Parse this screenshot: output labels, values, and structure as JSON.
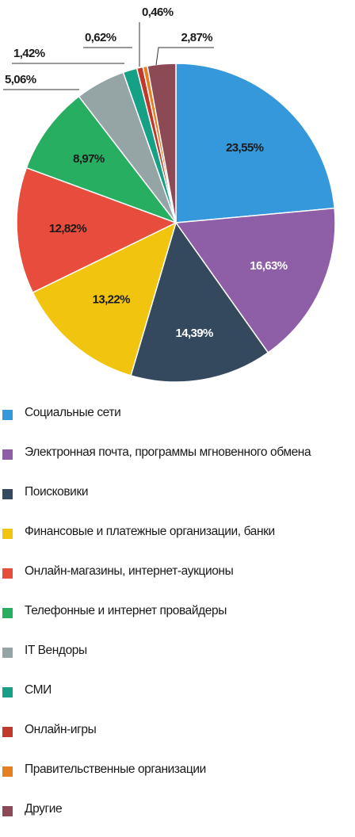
{
  "chart_data": {
    "type": "pie",
    "title": "",
    "legend_position": "bottom",
    "series": [
      {
        "name": "Социальные сети",
        "value": 23.55,
        "label": "23,55%",
        "color": "#3498db"
      },
      {
        "name": "Электронная почта, программы мгновенного обмена",
        "value": 16.63,
        "label": "16,63%",
        "color": "#8e5ea6"
      },
      {
        "name": "Поисковики",
        "value": 14.39,
        "label": "14,39%",
        "color": "#34495e"
      },
      {
        "name": "Финансовые и платежные организации, банки",
        "value": 13.22,
        "label": "13,22%",
        "color": "#f1c40f"
      },
      {
        "name": "Онлайн-магазины, интернет-аукционы",
        "value": 12.82,
        "label": "12,82%",
        "color": "#e74c3c"
      },
      {
        "name": "Телефонные и интернет провайдеры",
        "value": 8.97,
        "label": "8,97%",
        "color": "#27ae60"
      },
      {
        "name": "IT Вендоры",
        "value": 5.06,
        "label": "5,06%",
        "color": "#95a5a6"
      },
      {
        "name": "СМИ",
        "value": 1.42,
        "label": "1,42%",
        "color": "#16a085"
      },
      {
        "name": "Онлайн-игры",
        "value": 0.62,
        "label": "0,62%",
        "color": "#c0392b"
      },
      {
        "name": "Правительственные организации",
        "value": 0.46,
        "label": "0,46%",
        "color": "#e67e22"
      },
      {
        "name": "Другие",
        "value": 2.87,
        "label": "2,87%",
        "color": "#8b4a55"
      }
    ]
  }
}
